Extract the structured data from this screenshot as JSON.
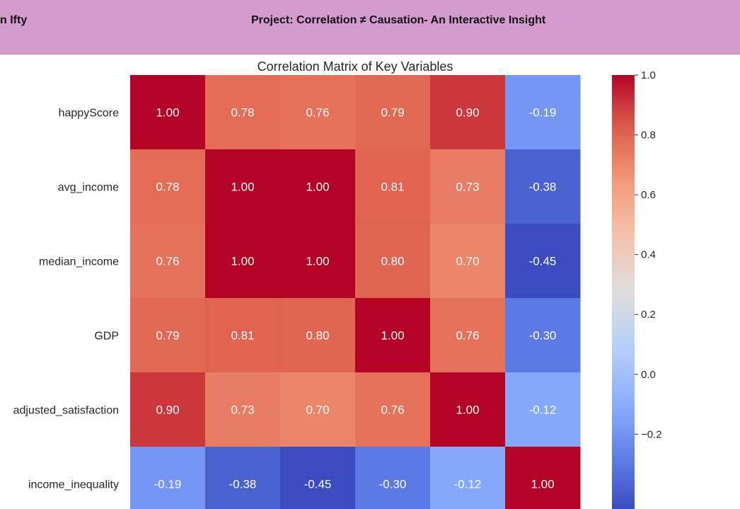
{
  "header": {
    "left_text": "n Ifty",
    "project_title": "Project: Correlation ≠ Causation- An Interactive Insight",
    "background_color": "#d39ccc"
  },
  "chart_data": {
    "type": "heatmap",
    "title": "Correlation Matrix of Key Variables",
    "row_labels": [
      "happyScore",
      "avg_income",
      "median_income",
      "GDP",
      "adjusted_satisfaction",
      "income_inequality"
    ],
    "values": [
      [
        1.0,
        0.78,
        0.76,
        0.79,
        0.9,
        -0.19
      ],
      [
        0.78,
        1.0,
        1.0,
        0.81,
        0.73,
        -0.38
      ],
      [
        0.76,
        1.0,
        1.0,
        0.8,
        0.7,
        -0.45
      ],
      [
        0.79,
        0.81,
        0.8,
        1.0,
        0.76,
        -0.3
      ],
      [
        0.9,
        0.73,
        0.7,
        0.76,
        1.0,
        -0.12
      ],
      [
        -0.19,
        -0.38,
        -0.45,
        -0.3,
        -0.12,
        1.0
      ]
    ],
    "cell_labels": [
      [
        "1.00",
        "0.78",
        "0.76",
        "0.79",
        "0.90",
        "-0.19"
      ],
      [
        "0.78",
        "1.00",
        "1.00",
        "0.81",
        "0.73",
        "-0.38"
      ],
      [
        "0.76",
        "1.00",
        "1.00",
        "0.80",
        "0.70",
        "-0.45"
      ],
      [
        "0.79",
        "0.81",
        "0.80",
        "1.00",
        "0.76",
        "-0.30"
      ],
      [
        "0.90",
        "0.73",
        "0.70",
        "0.76",
        "1.00",
        "-0.12"
      ],
      [
        "-0.19",
        "-0.38",
        "-0.45",
        "-0.30",
        "-0.12",
        "1.00"
      ]
    ],
    "colormap": "coolwarm",
    "colorbar": {
      "min": -0.45,
      "max": 1.0,
      "ticks": [
        1.0,
        0.8,
        0.6,
        0.4,
        0.2,
        0.0,
        -0.2
      ],
      "tick_labels": [
        "1.0",
        "0.8",
        "0.6",
        "0.4",
        "0.2",
        "0.0",
        "−0.2"
      ]
    }
  }
}
